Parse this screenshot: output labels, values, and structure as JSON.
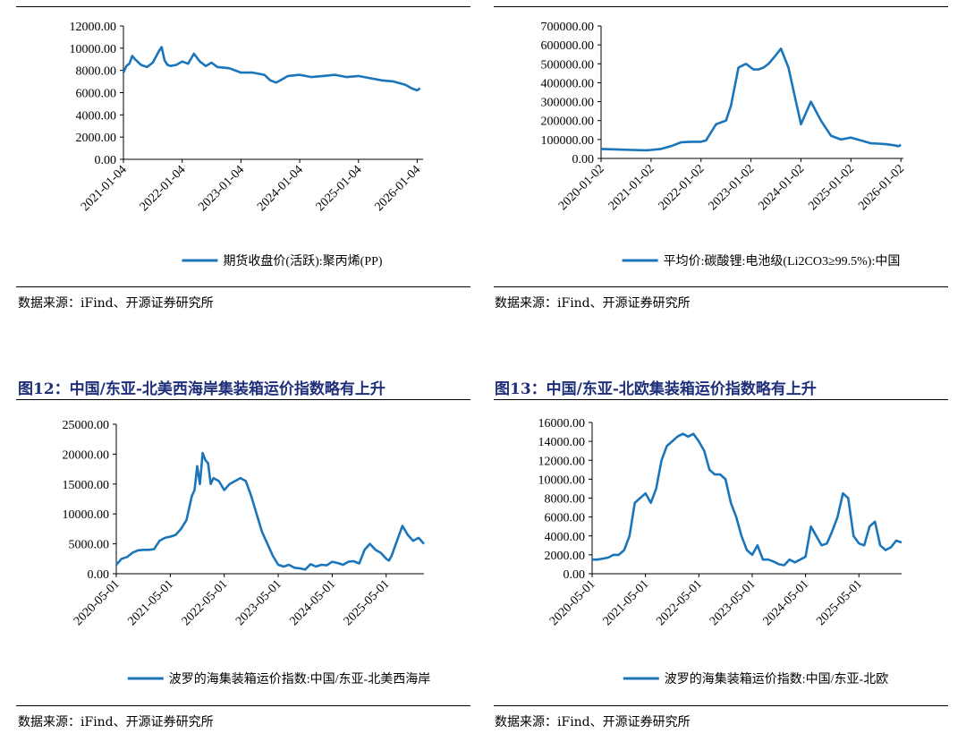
{
  "figures": [
    {
      "title": "",
      "source": "数据来源：iFind、开源证券研究所"
    },
    {
      "title": "",
      "source": "数据来源：iFind、开源证券研究所"
    },
    {
      "title": "图12：中国/东亚-北美西海岸集装箱运价指数略有上升",
      "source": "数据来源：iFind、开源证券研究所"
    },
    {
      "title": "图13：中国/东亚-北欧集装箱运价指数略有上升",
      "source": "数据来源：iFind、开源证券研究所"
    }
  ],
  "colors": {
    "line": "#1b75bb",
    "axis": "#000000",
    "title": "#1f2f7a"
  },
  "chart_data": [
    {
      "type": "line",
      "title": "",
      "legend": "期货收盘价(活跃):聚丙烯(PP)",
      "ylim": [
        0,
        12000
      ],
      "yticks": [
        "0.00",
        "2000.00",
        "4000.00",
        "6000.00",
        "8000.00",
        "10000.00",
        "12000.00"
      ],
      "xlim": [
        0,
        5.1
      ],
      "xticks": [
        0,
        1,
        2,
        3,
        4,
        5
      ],
      "xtick_labels": [
        "2021-01-04",
        "2022-01-04",
        "2023-01-04",
        "2024-01-04",
        "2025-01-04",
        "2026-01-04"
      ],
      "x": [
        0,
        0.05,
        0.1,
        0.15,
        0.2,
        0.3,
        0.4,
        0.5,
        0.6,
        0.65,
        0.7,
        0.75,
        0.8,
        0.9,
        1.0,
        1.1,
        1.2,
        1.3,
        1.4,
        1.5,
        1.6,
        1.8,
        2.0,
        2.2,
        2.4,
        2.5,
        2.6,
        2.7,
        2.8,
        3.0,
        3.2,
        3.4,
        3.6,
        3.8,
        4.0,
        4.2,
        4.4,
        4.6,
        4.8,
        4.9,
        5.0,
        5.05
      ],
      "values": [
        7800,
        8400,
        8600,
        9300,
        9000,
        8500,
        8300,
        8700,
        9700,
        10100,
        8900,
        8500,
        8400,
        8500,
        8800,
        8600,
        9500,
        8800,
        8400,
        8700,
        8300,
        8200,
        7800,
        7800,
        7600,
        7100,
        6900,
        7200,
        7500,
        7600,
        7400,
        7500,
        7600,
        7400,
        7500,
        7300,
        7100,
        7000,
        6700,
        6400,
        6200,
        6400
      ]
    },
    {
      "type": "line",
      "title": "",
      "legend": "平均价:碳酸锂:电池级(Li2CO3≥99.5%):中国",
      "ylim": [
        0,
        700000
      ],
      "yticks": [
        "0.00",
        "100000.00",
        "200000.00",
        "300000.00",
        "400000.00",
        "500000.00",
        "600000.00",
        "700000.00"
      ],
      "xlim": [
        0,
        6.05
      ],
      "xticks": [
        0,
        1,
        2,
        3,
        4,
        5,
        6
      ],
      "xtick_labels": [
        "2020-01-02",
        "2021-01-02",
        "2022-01-02",
        "2023-01-02",
        "2024-01-02",
        "2025-01-02",
        "2026-01-02"
      ],
      "x": [
        0,
        0.3,
        0.6,
        0.9,
        1.0,
        1.2,
        1.4,
        1.6,
        1.8,
        2.0,
        2.1,
        2.3,
        2.5,
        2.6,
        2.75,
        2.9,
        3.0,
        3.05,
        3.15,
        3.25,
        3.35,
        3.45,
        3.6,
        3.75,
        3.9,
        4.0,
        4.2,
        4.4,
        4.6,
        4.8,
        5.0,
        5.2,
        5.4,
        5.55,
        5.7,
        5.85,
        5.95,
        6.0
      ],
      "values": [
        50000,
        48000,
        45000,
        43000,
        45000,
        50000,
        65000,
        85000,
        88000,
        88000,
        95000,
        180000,
        200000,
        280000,
        480000,
        500000,
        480000,
        470000,
        470000,
        480000,
        500000,
        530000,
        580000,
        480000,
        300000,
        180000,
        300000,
        200000,
        120000,
        100000,
        110000,
        95000,
        80000,
        78000,
        75000,
        70000,
        65000,
        72000
      ]
    },
    {
      "type": "line",
      "title": "图12：中国/东亚-北美西海岸集装箱运价指数略有上升",
      "legend": "波罗的海集装箱运价指数:中国/东亚-北美西海岸",
      "ylim": [
        0,
        25000
      ],
      "yticks": [
        "0.00",
        "5000.00",
        "10000.00",
        "15000.00",
        "20000.00",
        "25000.00"
      ],
      "xlim": [
        0,
        5.7
      ],
      "xticks": [
        0,
        1,
        2,
        3,
        4,
        5
      ],
      "xtick_labels": [
        "2020-05-01",
        "2021-05-01",
        "2022-05-01",
        "2023-05-01",
        "2024-05-01",
        "2025-05-01"
      ],
      "x": [
        0,
        0.1,
        0.2,
        0.3,
        0.4,
        0.5,
        0.6,
        0.7,
        0.8,
        0.9,
        1.0,
        1.1,
        1.2,
        1.3,
        1.4,
        1.45,
        1.5,
        1.55,
        1.6,
        1.65,
        1.7,
        1.75,
        1.8,
        1.9,
        2.0,
        2.1,
        2.2,
        2.3,
        2.4,
        2.5,
        2.6,
        2.7,
        2.8,
        2.9,
        3.0,
        3.1,
        3.2,
        3.3,
        3.4,
        3.5,
        3.6,
        3.7,
        3.8,
        3.9,
        4.0,
        4.1,
        4.2,
        4.3,
        4.4,
        4.5,
        4.6,
        4.7,
        4.8,
        4.9,
        5.0,
        5.05,
        5.1,
        5.2,
        5.3,
        5.4,
        5.5,
        5.6,
        5.7
      ],
      "values": [
        1500,
        2500,
        2800,
        3500,
        3900,
        4000,
        4000,
        4100,
        5500,
        6000,
        6200,
        6500,
        7500,
        9000,
        13000,
        14000,
        18000,
        15000,
        20200,
        19000,
        18500,
        15000,
        16000,
        15500,
        14000,
        15000,
        15500,
        16000,
        15500,
        13000,
        10000,
        7000,
        5000,
        3000,
        1500,
        1200,
        1500,
        1000,
        900,
        700,
        1600,
        1200,
        1500,
        1400,
        2000,
        1800,
        1500,
        2000,
        2100,
        1700,
        4000,
        5000,
        4000,
        3500,
        2500,
        2200,
        3000,
        5500,
        8000,
        6500,
        5500,
        6000,
        5000
      ]
    },
    {
      "type": "line",
      "title": "图13：中国/东亚-北欧集装箱运价指数略有上升",
      "legend": "波罗的海集装箱运价指数:中国/东亚-北欧",
      "ylim": [
        0,
        16000
      ],
      "yticks": [
        "0.00",
        "2000.00",
        "4000.00",
        "6000.00",
        "8000.00",
        "10000.00",
        "12000.00",
        "14000.00",
        "16000.00"
      ],
      "xlim": [
        0,
        5.8
      ],
      "xticks": [
        0,
        1,
        2,
        3,
        4,
        5
      ],
      "xtick_labels": [
        "2020-05-01",
        "2021-05-01",
        "2022-05-01",
        "2023-05-01",
        "2024-05-01",
        "2025-05-01"
      ],
      "x": [
        0,
        0.1,
        0.2,
        0.3,
        0.4,
        0.5,
        0.6,
        0.7,
        0.8,
        0.9,
        1.0,
        1.1,
        1.2,
        1.3,
        1.4,
        1.5,
        1.6,
        1.7,
        1.8,
        1.9,
        2.0,
        2.1,
        2.2,
        2.3,
        2.4,
        2.5,
        2.6,
        2.7,
        2.8,
        2.9,
        3.0,
        3.1,
        3.2,
        3.3,
        3.4,
        3.5,
        3.6,
        3.7,
        3.8,
        3.9,
        4.0,
        4.1,
        4.2,
        4.3,
        4.4,
        4.5,
        4.6,
        4.7,
        4.8,
        4.9,
        5.0,
        5.1,
        5.2,
        5.3,
        5.4,
        5.5,
        5.6,
        5.7,
        5.8
      ],
      "values": [
        1500,
        1500,
        1600,
        1700,
        2000,
        2000,
        2500,
        4000,
        7500,
        8000,
        8500,
        7500,
        9000,
        12000,
        13500,
        14000,
        14500,
        14800,
        14500,
        14800,
        14000,
        13000,
        11000,
        10500,
        10500,
        10000,
        7500,
        6000,
        4000,
        2500,
        2000,
        3000,
        1500,
        1500,
        1300,
        1000,
        900,
        1500,
        1200,
        1500,
        1800,
        5000,
        4000,
        3000,
        3200,
        4500,
        6000,
        8500,
        8000,
        4000,
        3200,
        3000,
        5000,
        5500,
        3000,
        2500,
        2800,
        3500,
        3300
      ]
    }
  ]
}
